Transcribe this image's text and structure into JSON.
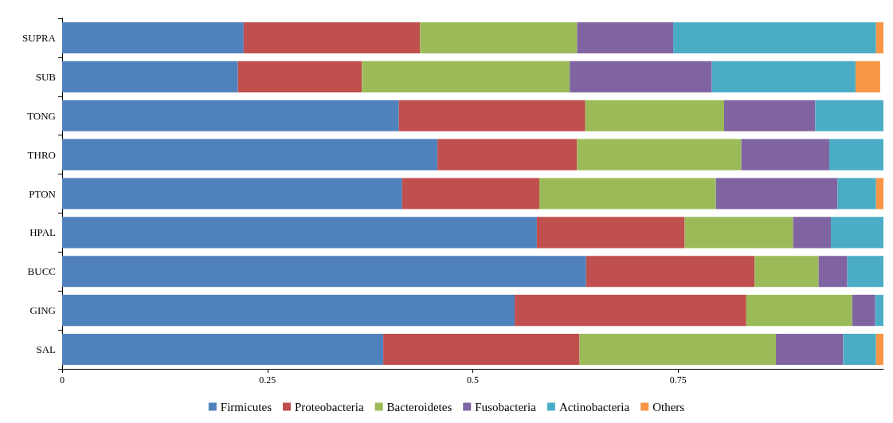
{
  "chart_data": {
    "type": "bar",
    "orientation": "horizontal",
    "stacked": true,
    "legend": "bottom",
    "grid": false,
    "categories": [
      "SUPRA",
      "SUB",
      "TONG",
      "THRO",
      "PTON",
      "HPAL",
      "BUCC",
      "GING",
      "SAL"
    ],
    "xlim": [
      0,
      1
    ],
    "xticks": [
      0,
      0.25,
      0.5,
      0.75
    ],
    "series": [
      {
        "name": "Firmicutes",
        "color": "#4f81bd",
        "values": [
          0.221,
          0.214,
          0.41,
          0.457,
          0.414,
          0.578,
          0.638,
          0.551,
          0.391
        ]
      },
      {
        "name": "Proteobacteria",
        "color": "#c0504d",
        "values": [
          0.215,
          0.151,
          0.227,
          0.17,
          0.167,
          0.18,
          0.205,
          0.282,
          0.239
        ]
      },
      {
        "name": "Bacteroidetes",
        "color": "#9bbb59",
        "values": [
          0.191,
          0.253,
          0.169,
          0.2,
          0.215,
          0.132,
          0.078,
          0.129,
          0.239
        ]
      },
      {
        "name": "Fusobacteria",
        "color": "#8064a2",
        "values": [
          0.117,
          0.173,
          0.111,
          0.107,
          0.148,
          0.046,
          0.035,
          0.028,
          0.082
        ]
      },
      {
        "name": "Actinobacteria",
        "color": "#4bacc6",
        "values": [
          0.247,
          0.175,
          0.083,
          0.066,
          0.047,
          0.064,
          0.044,
          0.01,
          0.04
        ]
      },
      {
        "name": "Others",
        "color": "#f79646",
        "values": [
          0.009,
          0.03,
          null,
          null,
          0.009,
          null,
          null,
          null,
          0.009
        ]
      }
    ]
  }
}
